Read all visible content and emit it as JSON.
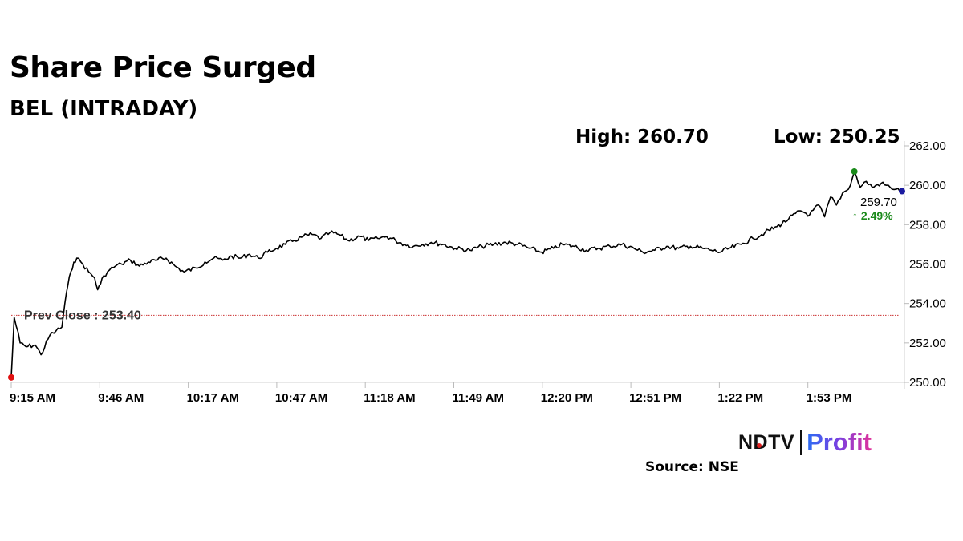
{
  "header": {
    "title": "Share Price Surged",
    "subtitle": "BEL (INTRADAY)",
    "high_label": "High: 260.70",
    "low_label": "Low: 250.25"
  },
  "footer": {
    "logo_ndtv": "NDTV",
    "logo_profit": "Profit",
    "source": "Source: NSE"
  },
  "colors": {
    "line": "#000000",
    "prev_close_line": "#cc3333",
    "low_marker": "#e01010",
    "high_marker": "#1a8a1a",
    "last_marker": "#1a1aa0",
    "change_positive": "#1a8a1a"
  },
  "chart_data": {
    "type": "line",
    "title": "Share Price Surged",
    "subtitle": "BEL (INTRADAY)",
    "xlabel": "",
    "ylabel": "",
    "x_ticks": [
      "9:15 AM",
      "9:46 AM",
      "10:17 AM",
      "10:47 AM",
      "11:18 AM",
      "11:49 AM",
      "12:20 PM",
      "12:51 PM",
      "1:22 PM",
      "1:53 PM"
    ],
    "y_ticks": [
      "250.00",
      "252.00",
      "254.00",
      "256.00",
      "258.00",
      "260.00",
      "262.00"
    ],
    "ylim": [
      250,
      262
    ],
    "grid": false,
    "prev_close": 253.4,
    "prev_close_label": "Prev Close : 253.40",
    "high": 260.7,
    "low": 250.25,
    "last_price": "259.70",
    "change": "↑ 2.49%",
    "series": [
      {
        "x": [
          "9:15",
          "9:16",
          "9:18",
          "9:20",
          "9:23",
          "9:25",
          "9:28",
          "9:30",
          "9:32",
          "9:33",
          "9:34",
          "9:35",
          "9:36",
          "9:37",
          "9:39",
          "9:41",
          "9:43",
          "9:44",
          "9:45",
          "9:46",
          "9:48",
          "9:50",
          "9:52",
          "9:55",
          "9:58",
          "10:01",
          "10:04",
          "10:07",
          "10:10",
          "10:13",
          "10:17",
          "10:20",
          "10:23",
          "10:26",
          "10:29",
          "10:32",
          "10:35",
          "10:38",
          "10:41",
          "10:44",
          "10:47",
          "10:50",
          "10:53",
          "10:56",
          "10:59",
          "11:02",
          "11:05",
          "11:08",
          "11:12",
          "11:15",
          "11:18",
          "11:21",
          "11:24",
          "11:27",
          "11:30",
          "11:33",
          "11:36",
          "11:40",
          "11:44",
          "11:49",
          "11:53",
          "11:57",
          "12:01",
          "12:05",
          "12:09",
          "12:13",
          "12:17",
          "12:20",
          "12:24",
          "12:28",
          "12:32",
          "12:36",
          "12:40",
          "12:44",
          "12:47",
          "12:51",
          "12:55",
          "12:59",
          "13:03",
          "13:07",
          "13:10",
          "13:13",
          "13:16",
          "13:20",
          "13:24",
          "13:28",
          "13:32",
          "13:36",
          "13:40",
          "13:43",
          "13:46",
          "13:48",
          "13:50",
          "13:52",
          "13:54",
          "13:56",
          "13:58",
          "14:00",
          "14:02",
          "14:04",
          "14:07",
          "14:10",
          "14:12",
          "14:14"
        ],
        "values": [
          250.25,
          253.3,
          252.0,
          251.8,
          251.9,
          251.4,
          252.4,
          252.6,
          252.8,
          254.0,
          254.9,
          255.6,
          256.1,
          256.3,
          256.0,
          255.6,
          255.3,
          254.7,
          255.0,
          255.4,
          255.7,
          255.9,
          256.0,
          256.2,
          255.9,
          256.1,
          256.2,
          256.3,
          255.9,
          255.6,
          255.8,
          256.1,
          256.3,
          256.2,
          256.4,
          256.3,
          256.5,
          256.3,
          256.6,
          256.8,
          257.0,
          257.2,
          257.4,
          257.5,
          257.3,
          257.6,
          257.5,
          257.2,
          257.4,
          257.2,
          257.3,
          257.4,
          257.2,
          257.0,
          256.9,
          257.0,
          257.1,
          257.0,
          256.8,
          256.7,
          256.9,
          257.0,
          257.1,
          257.0,
          256.8,
          256.6,
          256.8,
          257.0,
          256.9,
          256.7,
          256.8,
          256.9,
          257.0,
          256.8,
          256.6,
          256.7,
          256.9,
          256.8,
          256.9,
          256.8,
          256.7,
          256.6,
          256.8,
          257.0,
          257.3,
          257.6,
          257.9,
          258.3,
          258.7,
          258.5,
          259.0,
          258.4,
          259.4,
          259.0,
          259.6,
          259.8,
          260.7,
          259.9,
          260.2,
          259.9,
          260.1,
          259.9,
          259.8,
          259.7
        ]
      }
    ]
  }
}
